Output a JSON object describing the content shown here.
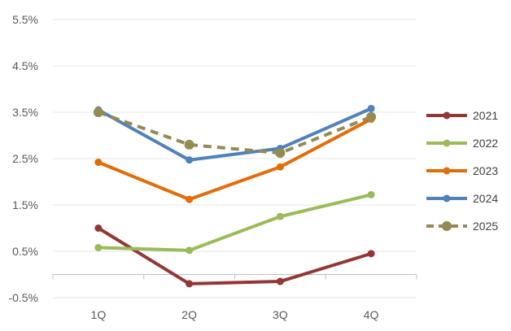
{
  "chart_data": {
    "type": "line",
    "title": "",
    "xlabel": "",
    "ylabel": "",
    "categories": [
      "1Q",
      "2Q",
      "3Q",
      "4Q"
    ],
    "ylim": [
      -0.5,
      5.5
    ],
    "yticks": [
      -0.5,
      0.5,
      1.5,
      2.5,
      3.5,
      4.5,
      5.5
    ],
    "ytick_labels": [
      "-0.5%",
      "0.5%",
      "1.5%",
      "2.5%",
      "3.5%",
      "4.5%",
      "5.5%"
    ],
    "grid": true,
    "legend_position": "right",
    "series": [
      {
        "name": "2021",
        "color": "#943634",
        "dashed": false,
        "values": [
          1.0,
          -0.2,
          -0.15,
          0.45
        ]
      },
      {
        "name": "2022",
        "color": "#9BBB59",
        "dashed": false,
        "values": [
          0.58,
          0.52,
          1.25,
          1.72
        ]
      },
      {
        "name": "2023",
        "color": "#E36C09",
        "dashed": false,
        "values": [
          2.42,
          1.62,
          2.32,
          3.35
        ]
      },
      {
        "name": "2024",
        "color": "#4F81BD",
        "dashed": false,
        "values": [
          3.55,
          2.47,
          2.72,
          3.58
        ]
      },
      {
        "name": "2025",
        "color": "#948A54",
        "dashed": true,
        "values": [
          3.5,
          2.8,
          2.62,
          3.4
        ]
      }
    ]
  }
}
